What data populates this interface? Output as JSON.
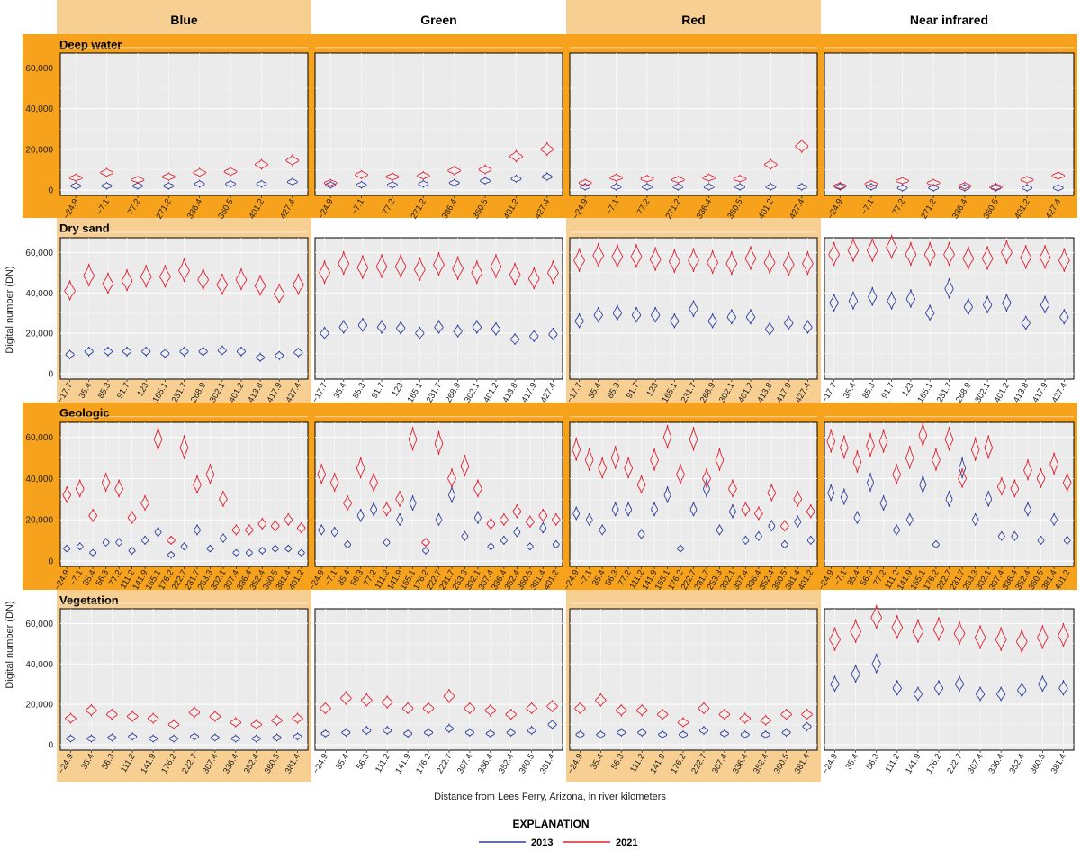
{
  "chart_data": {
    "type": "violin",
    "columns": [
      "Blue",
      "Green",
      "Red",
      "Near infrared"
    ],
    "colors": {
      "2013": "#2d3e9a",
      "2021": "#e0202f",
      "highlight": "#f7a21c",
      "highlight_light": "#f8cf93",
      "panel_bg": "#ebebeb"
    },
    "ylabel": "Digital number (DN)",
    "xlabel": "Distance from Lees Ferry, Arizona, in river kilometers",
    "ylim": [
      0,
      65535
    ],
    "yticks": [
      0,
      20000,
      40000,
      60000
    ],
    "ytick_labels": [
      "0",
      "20,000",
      "40,000",
      "60,000"
    ],
    "legend": {
      "title": "EXPLANATION",
      "entries": [
        {
          "label": "2013",
          "color": "#2d3e9a"
        },
        {
          "label": "2021",
          "color": "#e0202f"
        }
      ]
    },
    "rows": [
      {
        "name": "Deep water",
        "categories": [
          "−24.9",
          "−7.1",
          "77.2",
          "271.2",
          "336.4",
          "360.5",
          "401.2",
          "427.4"
        ],
        "series": {
          "2013": [
            [
              2000,
              2000,
              2000,
              2000,
              3000,
              3000,
              3000,
              4000
            ],
            [
              2500,
              2500,
              2500,
              3000,
              3500,
              4500,
              5500,
              6500
            ],
            [
              1500,
              1500,
              1500,
              1500,
              1500,
              1500,
              1500,
              1500
            ],
            [
              1500,
              1500,
              1000,
              1000,
              1000,
              1000,
              1000,
              1000
            ]
          ],
          "2021": [
            [
              6000,
              8500,
              5000,
              6500,
              8500,
              9000,
              12500,
              14500
            ],
            [
              3500,
              7500,
              6500,
              7000,
              9500,
              10000,
              16500,
              20000
            ],
            [
              3500,
              6000,
              5500,
              5000,
              6000,
              5500,
              12500,
              21500
            ],
            [
              2000,
              3000,
              4500,
              3500,
              2000,
              1500,
              5000,
              7000
            ]
          ]
        }
      },
      {
        "name": "Dry sand",
        "categories": [
          "−17.7",
          "35.4",
          "85.3",
          "91.7",
          "123",
          "165.1",
          "231.7",
          "268.9",
          "302.1",
          "401.2",
          "413.8",
          "417.9",
          "427.4"
        ],
        "series": {
          "2013": [
            [
              9500,
              11000,
              11000,
              11000,
              11000,
              10000,
              11000,
              11000,
              11500,
              11000,
              8000,
              9000,
              10500
            ],
            [
              20000,
              23000,
              24000,
              23000,
              22500,
              20000,
              23000,
              21000,
              23000,
              22000,
              17000,
              18500,
              19500
            ],
            [
              26000,
              29000,
              30000,
              29000,
              29000,
              26000,
              32000,
              26000,
              28000,
              28000,
              22000,
              25000,
              23000
            ],
            [
              35000,
              36000,
              38000,
              36000,
              37000,
              30000,
              42000,
              33000,
              34000,
              35000,
              25000,
              34000,
              28000
            ]
          ],
          "2021": [
            [
              41000,
              48500,
              44500,
              46000,
              48000,
              48000,
              51000,
              46500,
              44000,
              46500,
              43500,
              39500,
              44000
            ],
            [
              50000,
              54500,
              52500,
              53000,
              53000,
              51500,
              54000,
              52000,
              50000,
              53000,
              49000,
              47000,
              50000
            ],
            [
              56000,
              58500,
              58000,
              58000,
              56500,
              55500,
              56000,
              55000,
              54500,
              57000,
              55000,
              54000,
              54500
            ],
            [
              59000,
              61000,
              61000,
              62500,
              59000,
              59000,
              59000,
              57000,
              57000,
              60000,
              57500,
              57500,
              56000
            ]
          ]
        }
      },
      {
        "name": "Geologic",
        "categories": [
          "−24.9",
          "−7.1",
          "35.4",
          "56.3",
          "77.2",
          "111.2",
          "141.9",
          "165.1",
          "176.2",
          "222.7",
          "231.7",
          "253.3",
          "302.1",
          "307.4",
          "336.4",
          "352.4",
          "360.5",
          "381.4",
          "401.2"
        ],
        "series": {
          "2013": [
            [
              6000,
              7000,
              4000,
              9000,
              9000,
              5000,
              10000,
              14000,
              3000,
              7000,
              15000,
              6000,
              11000,
              4000,
              4000,
              5000,
              6000,
              6000,
              4000
            ],
            [
              15000,
              14000,
              8000,
              22000,
              25000,
              9000,
              20000,
              28000,
              5000,
              20000,
              32000,
              12000,
              21000,
              7000,
              10000,
              14000,
              7000,
              16000,
              8000
            ],
            [
              23000,
              20000,
              15000,
              25000,
              25000,
              13000,
              25000,
              32000,
              6000,
              25000,
              35000,
              15000,
              24000,
              10000,
              12000,
              17000,
              8000,
              19000,
              10000
            ],
            [
              33000,
              31000,
              21000,
              38000,
              28000,
              15000,
              20000,
              37000,
              8000,
              30000,
              45000,
              20000,
              30000,
              12000,
              12000,
              25000,
              10000,
              20000,
              10000
            ]
          ],
          "2021": [
            [
              32000,
              35000,
              22000,
              38000,
              35000,
              21000,
              28000,
              59000,
              10000,
              55000,
              37000,
              42000,
              30000,
              15000,
              15000,
              18000,
              17000,
              20000,
              16000
            ],
            [
              42000,
              38000,
              28000,
              45000,
              38000,
              25000,
              30000,
              59000,
              9000,
              57000,
              40000,
              46000,
              35000,
              18000,
              20000,
              24000,
              19000,
              22000,
              20000
            ],
            [
              54000,
              49000,
              45000,
              50000,
              45000,
              37000,
              49000,
              60000,
              42000,
              59000,
              40000,
              49000,
              35000,
              25000,
              23000,
              33000,
              17000,
              30000,
              24000
            ],
            [
              58000,
              55000,
              48000,
              56000,
              58000,
              42000,
              50000,
              61000,
              49000,
              59000,
              40000,
              54000,
              55000,
              36000,
              35000,
              44000,
              40000,
              47000,
              38000
            ]
          ]
        }
      },
      {
        "name": "Vegetation",
        "categories": [
          "−24.9",
          "35.4",
          "56.3",
          "111.2",
          "141.9",
          "176.2",
          "222.7",
          "307.4",
          "336.4",
          "352.4",
          "360.5",
          "381.4"
        ],
        "series": {
          "2013": [
            [
              3000,
              3000,
              3500,
              4000,
              3000,
              3000,
              4000,
              3500,
              3000,
              3000,
              3500,
              4000
            ],
            [
              5500,
              6000,
              7000,
              7000,
              5500,
              6000,
              8000,
              6000,
              5500,
              6000,
              7000,
              10000
            ],
            [
              5000,
              5000,
              6000,
              6000,
              5000,
              5000,
              7000,
              5500,
              5000,
              5000,
              6000,
              9000
            ],
            [
              30000,
              35000,
              40000,
              28000,
              25000,
              28000,
              30000,
              25000,
              25000,
              27000,
              30000,
              28000
            ]
          ],
          "2021": [
            [
              13000,
              17000,
              15000,
              14000,
              13000,
              10000,
              16000,
              14000,
              11000,
              10000,
              12000,
              13000
            ],
            [
              18000,
              23000,
              22000,
              21000,
              18000,
              18000,
              24000,
              18000,
              17000,
              15000,
              18000,
              19000
            ],
            [
              18000,
              22000,
              17000,
              17000,
              15000,
              11000,
              18000,
              15000,
              13000,
              12000,
              15000,
              15000
            ],
            [
              52000,
              56000,
              63000,
              58000,
              56000,
              57000,
              55000,
              53000,
              52000,
              51000,
              53000,
              54000
            ]
          ]
        }
      }
    ]
  }
}
